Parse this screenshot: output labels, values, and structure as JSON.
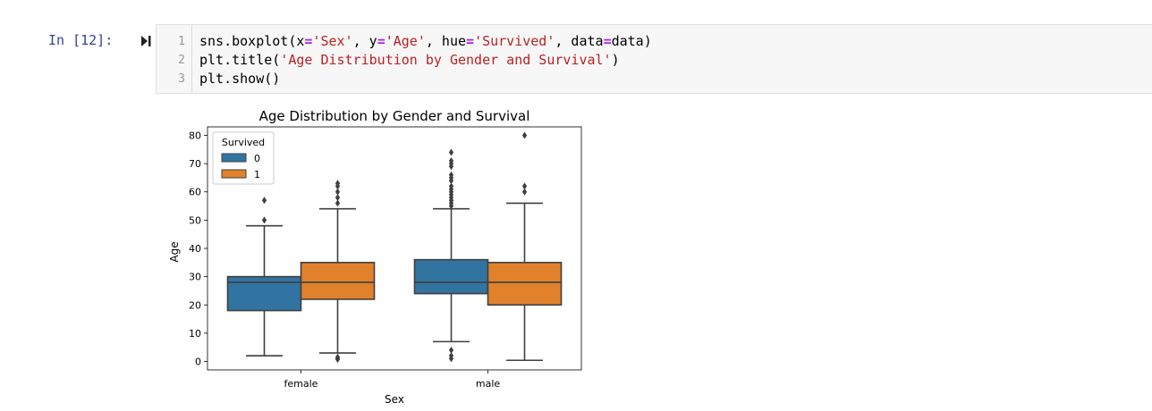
{
  "cell": {
    "prompt": "In [12]:",
    "code_lines": [
      {
        "num": "1",
        "parts": [
          {
            "t": "sns.boxplot(x",
            "c": ""
          },
          {
            "t": "=",
            "c": "op"
          },
          {
            "t": "'Sex'",
            "c": "str"
          },
          {
            "t": ", y",
            "c": ""
          },
          {
            "t": "=",
            "c": "op"
          },
          {
            "t": "'Age'",
            "c": "str"
          },
          {
            "t": ", hue",
            "c": ""
          },
          {
            "t": "=",
            "c": "op"
          },
          {
            "t": "'Survived'",
            "c": "str"
          },
          {
            "t": ", data",
            "c": ""
          },
          {
            "t": "=",
            "c": "op"
          },
          {
            "t": "data)",
            "c": ""
          }
        ]
      },
      {
        "num": "2",
        "parts": [
          {
            "t": "plt.title(",
            "c": ""
          },
          {
            "t": "'Age Distribution by Gender and Survival'",
            "c": "str"
          },
          {
            "t": ")",
            "c": ""
          }
        ]
      },
      {
        "num": "3",
        "parts": [
          {
            "t": "plt.show()",
            "c": ""
          }
        ]
      }
    ]
  },
  "colors": {
    "survived_0": "#3274a1",
    "survived_1": "#e1812c"
  },
  "chart_data": {
    "type": "box",
    "title": "Age Distribution by Gender and Survival",
    "xlabel": "Sex",
    "ylabel": "Age",
    "ylim": [
      -3,
      83
    ],
    "yticks": [
      0,
      10,
      20,
      30,
      40,
      50,
      60,
      70,
      80
    ],
    "categories": [
      "female",
      "male"
    ],
    "legend": {
      "title": "Survived",
      "placement": "top-left",
      "entries": [
        "0",
        "1"
      ]
    },
    "boxes": [
      {
        "category": "female",
        "hue": "0",
        "whislo": 2,
        "q1": 18,
        "med": 28,
        "q3": 30,
        "whishi": 48,
        "fliers": [
          50,
          57
        ]
      },
      {
        "category": "female",
        "hue": "1",
        "whislo": 3,
        "q1": 22,
        "med": 28,
        "q3": 35,
        "whishi": 54,
        "fliers": [
          0.75,
          1,
          1.5,
          56,
          58,
          60,
          62,
          63
        ]
      },
      {
        "category": "male",
        "hue": "0",
        "whislo": 7,
        "q1": 24,
        "med": 28,
        "q3": 36,
        "whishi": 54,
        "fliers": [
          1,
          2,
          4,
          55,
          56,
          57,
          58,
          59,
          60,
          61,
          62,
          64,
          65,
          66,
          69,
          70,
          71,
          74
        ]
      },
      {
        "category": "male",
        "hue": "1",
        "whislo": 0.4,
        "q1": 20,
        "med": 28,
        "q3": 35,
        "whishi": 56,
        "fliers": [
          60,
          62,
          80
        ]
      }
    ]
  }
}
